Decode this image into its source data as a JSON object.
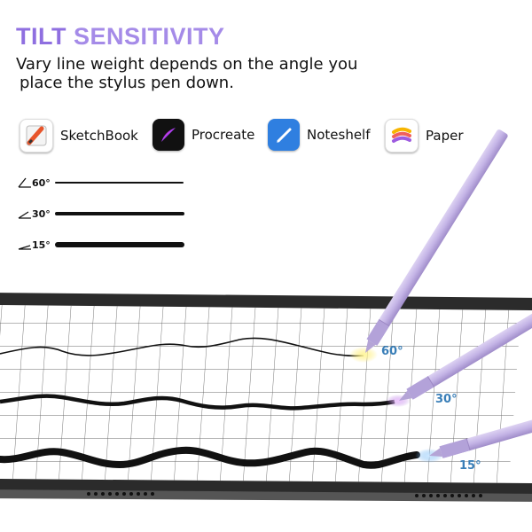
{
  "header": {
    "title_part1": "TILT ",
    "title_part2": "SENSITIVITY",
    "subtitle_line1": "Vary line weight depends on the angle you",
    "subtitle_line2": "place the stylus pen down."
  },
  "apps": [
    {
      "label": "SketchBook",
      "icon": "sketchbook-icon"
    },
    {
      "label": "Procreate",
      "icon": "procreate-icon"
    },
    {
      "label": "Noteshelf",
      "icon": "noteshelf-icon"
    },
    {
      "label": "Paper",
      "icon": "paper-icon"
    }
  ],
  "angle_samples": [
    {
      "label": "60°"
    },
    {
      "label": "30°"
    },
    {
      "label": "15°"
    }
  ],
  "pen_labels": [
    {
      "label": "60°"
    },
    {
      "label": "30°"
    },
    {
      "label": "15°"
    }
  ],
  "colors": {
    "title_purple": "#8f6fe0",
    "pen_lavender": "#c7b7e6",
    "angle_label_blue": "#3a7fb8",
    "tip_glow_60": "#ffe85a",
    "tip_glow_30": "#c98be0",
    "tip_glow_15": "#6fb3f0"
  }
}
